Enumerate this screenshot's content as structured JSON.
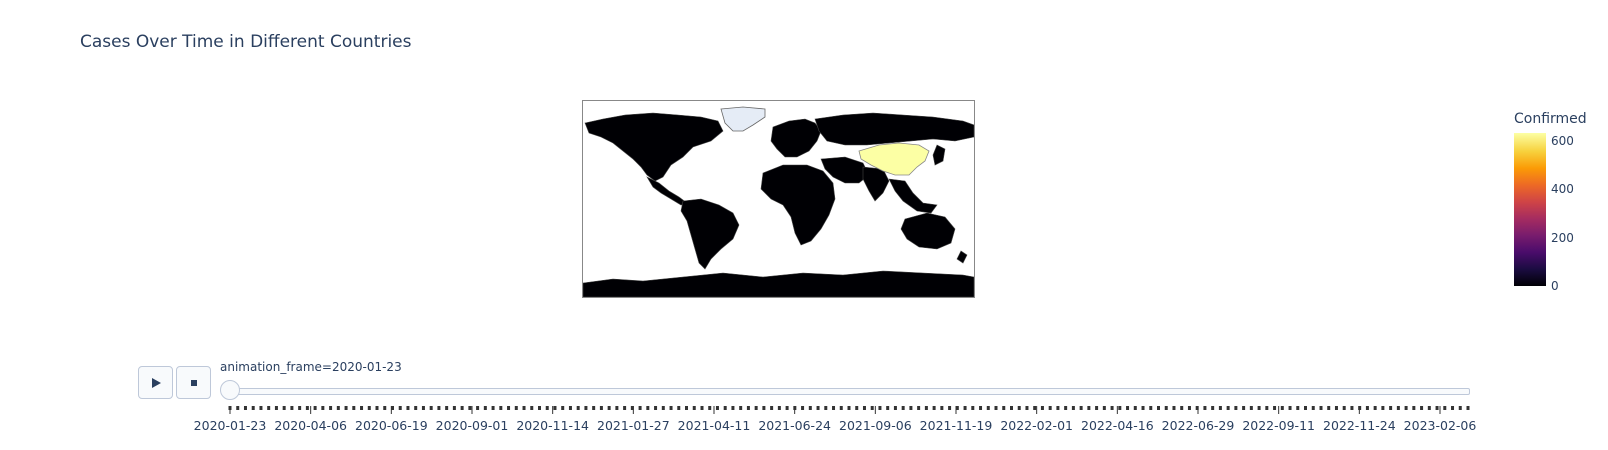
{
  "chart_data": {
    "type": "choropleth",
    "title": "Cases Over Time in Different Countries",
    "color_axis": {
      "title": "Confirmed",
      "range": [
        0,
        650
      ],
      "ticks": [
        "0",
        "200",
        "400",
        "600"
      ],
      "colorscale": "inferno"
    },
    "current_frame": "2020-01-23",
    "highlighted": [
      {
        "country": "China",
        "value": 640
      }
    ],
    "no_data_regions": [
      "Greenland"
    ],
    "default_value": 0
  },
  "controls": {
    "play_icon": "play-icon",
    "stop_icon": "stop-icon",
    "frame_label": "animation_frame=2020-01-23",
    "slider_ticks": [
      "2020-01-23",
      "2020-04-06",
      "2020-06-19",
      "2020-09-01",
      "2020-11-14",
      "2021-01-27",
      "2021-04-11",
      "2021-06-24",
      "2021-09-06",
      "2021-11-19",
      "2022-02-01",
      "2022-04-16",
      "2022-06-29",
      "2022-09-11",
      "2022-11-24",
      "2023-02-06"
    ]
  }
}
